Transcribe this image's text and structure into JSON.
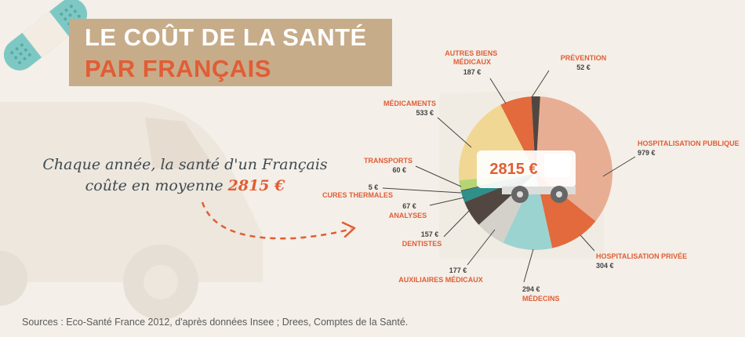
{
  "header": {
    "title_line1": "LE COÛT DE LA SANTÉ",
    "title_line2": "PAR FRANÇAIS"
  },
  "intro": {
    "line1": "Chaque année, la santé d'un Français",
    "line2": "coûte en moyenne",
    "amount": "2815 €"
  },
  "source": "Sources : Eco-Santé France 2012, d'après données Insee ; Drees, Comptes de la Santé.",
  "colors": {
    "accent": "#e15d35",
    "title_bg": "#c7ac8a",
    "background": "#f4efe8"
  },
  "chart_data": {
    "type": "pie",
    "title": "LE COÛT DE LA SANTÉ PAR FRANÇAIS",
    "total_label": "2815 €",
    "unit": "€",
    "slices": [
      {
        "label": "HOSPITALISATION PUBLIQUE",
        "value": 979,
        "value_label": "979 €",
        "color": "#e8ae94"
      },
      {
        "label": "HOSPITALISATION PRIVÉE",
        "value": 304,
        "value_label": "304 €",
        "color": "#e26a3c"
      },
      {
        "label": "MÉDECINS",
        "value": 294,
        "value_label": "294 €",
        "color": "#9bd3d0"
      },
      {
        "label": "AUXILIAIRES MÉDICAUX",
        "value": 177,
        "value_label": "177 €",
        "color": "#d4d1cb"
      },
      {
        "label": "DENTISTES",
        "value": 157,
        "value_label": "157 €",
        "color": "#514740"
      },
      {
        "label": "ANALYSES",
        "value": 67,
        "value_label": "67 €",
        "color": "#2f8f89"
      },
      {
        "label": "CURES THERMALES",
        "value": 5,
        "value_label": "5 €",
        "color": "#3a3a3a"
      },
      {
        "label": "TRANSPORTS",
        "value": 60,
        "value_label": "60 €",
        "color": "#b7d474"
      },
      {
        "label": "MÉDICAMENTS",
        "value": 533,
        "value_label": "533 €",
        "color": "#f0d894"
      },
      {
        "label": "AUTRES BIENS MÉDICAUX",
        "value": 187,
        "value_label": "187 €",
        "color": "#e26a3c"
      },
      {
        "label": "PRÉVENTION",
        "value": 52,
        "value_label": "52 €",
        "color": "#514740"
      }
    ]
  }
}
